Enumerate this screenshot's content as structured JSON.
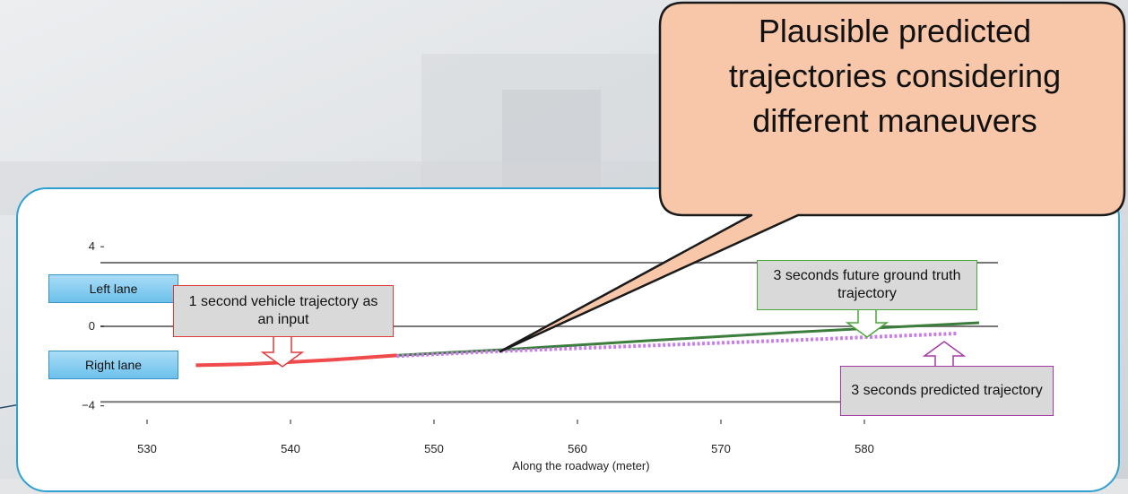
{
  "bubble": {
    "text": "Plausible predicted trajectories considering different maneuvers"
  },
  "lanes": {
    "left": "Left lane",
    "right": "Right lane"
  },
  "callouts": {
    "input": "1 second vehicle trajectory as an input",
    "ground_truth": "3 seconds future ground truth trajectory",
    "predicted": "3 seconds predicted trajectory"
  },
  "colors": {
    "input": "#f04a4a",
    "ground_truth": "#3b7d3b",
    "predicted": "#c77ee8",
    "panel_border": "#2f9fd0",
    "bubble_fill": "#f8c6a8"
  },
  "chart_data": {
    "type": "line",
    "xlabel": "Along the roadway (meter)",
    "ylabel": "",
    "xlim": [
      527,
      591
    ],
    "ylim": [
      -4.6,
      5.0
    ],
    "x_ticks": [
      530,
      540,
      550,
      560,
      570,
      580
    ],
    "y_ticks": [
      {
        "value": 4,
        "label": "4"
      },
      {
        "value": 0,
        "label": "0"
      },
      {
        "value": -4,
        "label": "−4"
      }
    ],
    "lane_lines": [
      3.2,
      0.0,
      -3.8
    ],
    "series": [
      {
        "name": "1 second vehicle trajectory as an input",
        "style": "solid",
        "x": [
          533.4,
          537,
          540,
          543,
          545.5,
          547.4
        ],
        "y": [
          -1.96,
          -1.9,
          -1.8,
          -1.68,
          -1.56,
          -1.46
        ]
      },
      {
        "name": "3 seconds future ground truth trajectory",
        "style": "solid",
        "x": [
          547.4,
          555,
          565,
          575,
          588
        ],
        "y": [
          -1.46,
          -1.17,
          -0.72,
          -0.3,
          0.18
        ]
      },
      {
        "name": "3 seconds predicted trajectory",
        "style": "dotted",
        "x": [
          547.4,
          555,
          565,
          575,
          586.5
        ],
        "y": [
          -1.5,
          -1.24,
          -0.97,
          -0.7,
          -0.36
        ]
      }
    ]
  }
}
